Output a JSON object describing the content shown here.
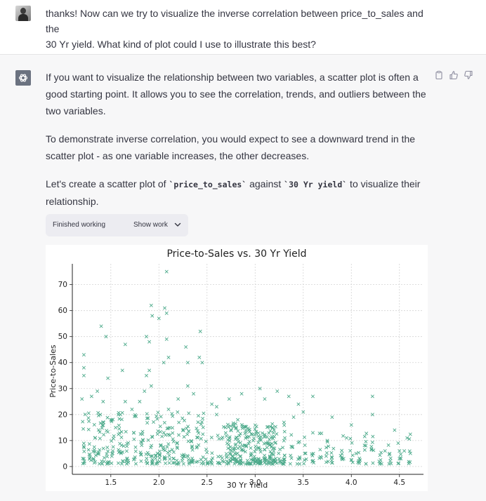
{
  "user_message": {
    "line1": "thanks! Now can we try to visualize the inverse correlation between price_to_sales and the",
    "line2": "30 Yr yield. What kind of plot could I use to illustrate this best?"
  },
  "assistant_message": {
    "p1": "If you want to visualize the relationship between two variables, a scatter plot is often a good starting point. It allows you to see the correlation, trends, and outliers between the two variables.",
    "p2": "To demonstrate inverse correlation, you would expect to see a downward trend in the scatter plot - as one variable increases, the other decreases.",
    "p3_before": "Let's create a scatter plot of ",
    "code1": "`price_to_sales`",
    "p3_mid": " against ",
    "code2": "`30 Yr yield`",
    "p3_after": " to visualize their relationship."
  },
  "work_status": {
    "finished_label": "Finished working",
    "show_label": "Show work"
  },
  "icons": {
    "user": "user-avatar-photo",
    "assistant": "openai-logo-icon",
    "copy": "clipboard-icon",
    "like": "thumbs-up-icon",
    "dislike": "thumbs-down-icon",
    "expand": "chevron-down-icon"
  },
  "colors": {
    "marker": "#4daa8b",
    "assistant_bg": "#f7f7f8",
    "pill_bg": "#ececf1"
  },
  "chart_data": {
    "type": "scatter",
    "title": "Price-to-Sales vs. 30 Yr Yield",
    "xlabel": "30 Yr Yield",
    "ylabel": "Price-to-Sales",
    "xlim": [
      1.1,
      4.75
    ],
    "ylim": [
      -3,
      78
    ],
    "xticks": [
      "1.5",
      "2.0",
      "2.5",
      "3.0",
      "3.5",
      "4.0",
      "4.5"
    ],
    "yticks": [
      "0",
      "10",
      "20",
      "30",
      "40",
      "50",
      "60",
      "70"
    ],
    "grid": true,
    "marker": "x",
    "points": [
      [
        2.08,
        75
      ],
      [
        1.92,
        62
      ],
      [
        2.06,
        61
      ],
      [
        2.08,
        59
      ],
      [
        1.93,
        58
      ],
      [
        2.0,
        57
      ],
      [
        1.4,
        54
      ],
      [
        1.45,
        50
      ],
      [
        2.43,
        52
      ],
      [
        1.87,
        50
      ],
      [
        1.9,
        48
      ],
      [
        2.08,
        49
      ],
      [
        1.65,
        47
      ],
      [
        1.22,
        43
      ],
      [
        2.28,
        46
      ],
      [
        2.42,
        42
      ],
      [
        2.05,
        40
      ],
      [
        2.1,
        42
      ],
      [
        2.3,
        40
      ],
      [
        2.45,
        40
      ],
      [
        1.9,
        37
      ],
      [
        1.87,
        35
      ],
      [
        1.22,
        38
      ],
      [
        1.22,
        35
      ],
      [
        1.47,
        34
      ],
      [
        1.62,
        37
      ],
      [
        1.85,
        29
      ],
      [
        1.92,
        31
      ],
      [
        2.3,
        31
      ],
      [
        2.36,
        28
      ],
      [
        1.2,
        26
      ],
      [
        1.3,
        27
      ],
      [
        1.42,
        25
      ],
      [
        1.36,
        29
      ],
      [
        2.73,
        26
      ],
      [
        2.86,
        28
      ],
      [
        3.05,
        30
      ],
      [
        3.23,
        29
      ],
      [
        3.35,
        27
      ],
      [
        3.6,
        27
      ],
      [
        4.22,
        27
      ],
      [
        3.45,
        24
      ],
      [
        3.1,
        26
      ],
      [
        2.55,
        24
      ],
      [
        2.6,
        23
      ],
      [
        3.5,
        21
      ],
      [
        3.8,
        19
      ],
      [
        4.0,
        16
      ],
      [
        4.22,
        20
      ],
      [
        4.45,
        14
      ],
      [
        4.58,
        11
      ],
      [
        3.95,
        11
      ],
      [
        3.75,
        10
      ],
      [
        3.6,
        13
      ],
      [
        4.15,
        8
      ],
      [
        4.35,
        6
      ],
      [
        4.55,
        6
      ],
      [
        4.5,
        3
      ],
      [
        3.92,
        3
      ],
      [
        4.05,
        5
      ],
      [
        3.3,
        17
      ],
      [
        3.4,
        19
      ],
      [
        2.82,
        18
      ],
      [
        2.6,
        20
      ],
      [
        2.1,
        22
      ],
      [
        2.2,
        26
      ],
      [
        1.8,
        25
      ],
      [
        1.6,
        20
      ],
      [
        1.65,
        25
      ],
      [
        1.72,
        22
      ],
      [
        1.5,
        18
      ],
      [
        1.55,
        15
      ]
    ]
  }
}
